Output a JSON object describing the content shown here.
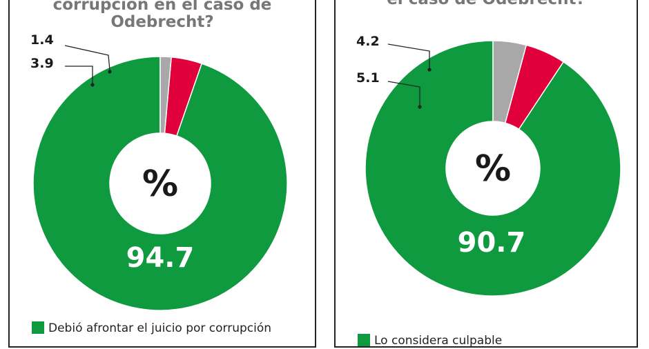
{
  "colors": {
    "green": "#0f9a3f",
    "red": "#e0003c",
    "gray": "#a8a8a8",
    "label_dark": "#1a1a1a"
  },
  "center_symbol": "%",
  "chart_data": [
    {
      "type": "pie",
      "title_lines": [
        "corrupción en el caso de",
        "Odebrecht?"
      ],
      "values": [
        94.7,
        3.9,
        1.4
      ],
      "value_labels": [
        "94.7",
        "3.9",
        "1.4"
      ],
      "legend": [
        "Debió afrontar el juicio por corrupción"
      ]
    },
    {
      "type": "pie",
      "title_lines": [
        "el caso de Odebrecht?"
      ],
      "values": [
        90.7,
        5.1,
        4.2
      ],
      "value_labels": [
        "90.7",
        "5.1",
        "4.2"
      ],
      "legend": [
        "Lo considera culpable"
      ]
    }
  ]
}
